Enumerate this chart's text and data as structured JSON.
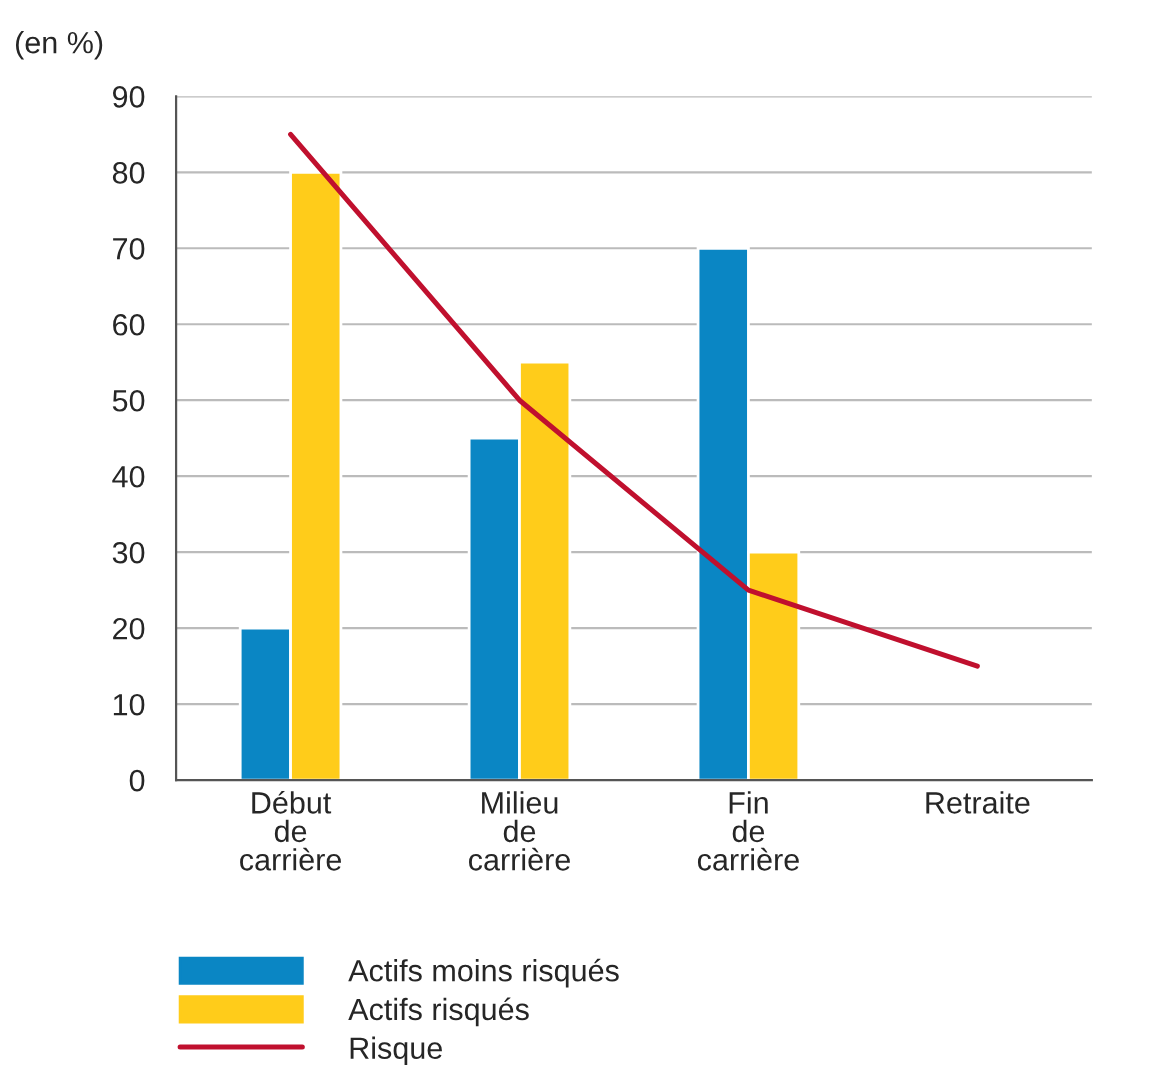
{
  "chart_data": {
    "type": "bar",
    "ylabel": "(en %)",
    "categories": [
      "Début\nde\ncarrière",
      "Milieu\nde\ncarrière",
      "Fin\nde\ncarrière",
      "Retraite"
    ],
    "series": [
      {
        "name": "Actifs moins risqués",
        "color": "#0a86c4",
        "values": [
          20,
          45,
          70,
          null
        ]
      },
      {
        "name": "Actifs risqués",
        "color": "#ffcc1a",
        "values": [
          80,
          55,
          30,
          null
        ]
      },
      {
        "name": "Risque",
        "type": "line",
        "color": "#c0102e",
        "values": [
          85,
          50,
          25,
          15
        ]
      }
    ],
    "ylim": [
      0,
      90
    ],
    "yticks": [
      0,
      10,
      20,
      30,
      40,
      50,
      60,
      70,
      80,
      90
    ],
    "grid": "y",
    "legend": "bottom"
  }
}
